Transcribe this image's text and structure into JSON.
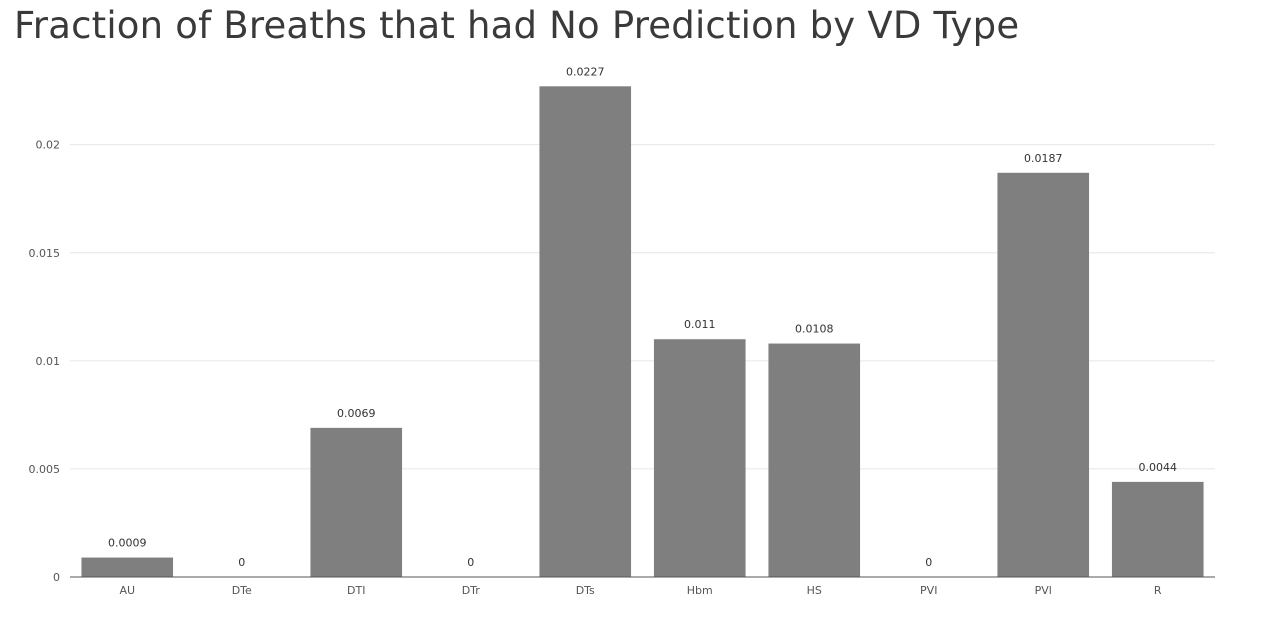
{
  "chart_data": {
    "type": "bar",
    "title": "Fraction of Breaths that had No Prediction by VD Type",
    "xlabel": "",
    "ylabel": "",
    "categories": [
      "AU",
      "DTe",
      "DTI",
      "DTr",
      "DTs",
      "Hbm",
      "HS",
      "PVI",
      "PVl",
      "R"
    ],
    "values": [
      0.0009,
      0,
      0.0069,
      0,
      0.0227,
      0.011,
      0.0108,
      0,
      0.0187,
      0.0044
    ],
    "data_labels": [
      "0.0009",
      "0",
      "0.0069",
      "0",
      "0.0227",
      "0.011",
      "0.0108",
      "0",
      "0.0187",
      "0.0044"
    ],
    "yticks": [
      0,
      0.005,
      0.01,
      0.015,
      0.02
    ],
    "ytick_labels": [
      "0",
      "0.005",
      "0.01",
      "0.015",
      "0.02"
    ],
    "ylim": [
      0,
      0.0229
    ],
    "grid": true,
    "legend": "none",
    "bar_color": "#7f7f7f"
  }
}
